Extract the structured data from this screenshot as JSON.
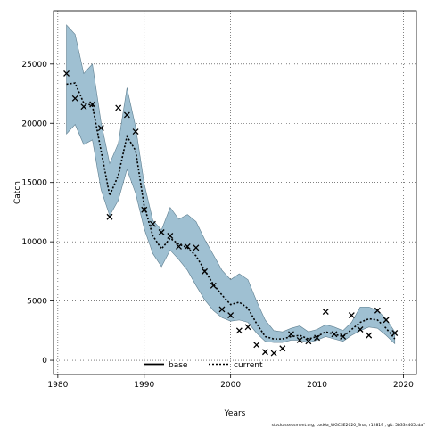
{
  "chart_data": {
    "type": "line",
    "xlabel": "Years",
    "ylabel": "Catch",
    "xlim": [
      1979.5,
      2021.5
    ],
    "ylim": [
      -1200,
      29500
    ],
    "x_ticks": [
      1980,
      1990,
      2000,
      2010,
      2020
    ],
    "y_ticks": [
      0,
      5000,
      10000,
      15000,
      20000,
      25000
    ],
    "grid": true,
    "legend_position": "bottom-center",
    "legend": {
      "base": "base",
      "current": "current"
    },
    "colors": {
      "band": "#9fc0d2",
      "band_edge": "#5f7f90",
      "line": "#000000"
    },
    "years": [
      1981,
      1982,
      1983,
      1984,
      1985,
      1986,
      1987,
      1988,
      1989,
      1990,
      1991,
      1992,
      1993,
      1994,
      1995,
      1996,
      1997,
      1998,
      1999,
      2000,
      2001,
      2002,
      2003,
      2004,
      2005,
      2006,
      2007,
      2008,
      2009,
      2010,
      2011,
      2012,
      2013,
      2014,
      2015,
      2016,
      2017,
      2018,
      2019
    ],
    "series": [
      {
        "name": "current",
        "style": "dotted",
        "values": [
          23300,
          23400,
          21700,
          21500,
          17700,
          13900,
          15600,
          18900,
          17700,
          13000,
          10500,
          9400,
          10300,
          9800,
          9500,
          8800,
          7600,
          6400,
          5500,
          4700,
          4900,
          4400,
          3100,
          2000,
          1800,
          1800,
          2000,
          2100,
          1800,
          2000,
          2400,
          2200,
          2000,
          2600,
          3200,
          3500,
          3400,
          2700,
          1800
        ],
        "lower": [
          19100,
          19900,
          18200,
          18600,
          14400,
          12200,
          13500,
          16100,
          14100,
          11100,
          9000,
          7900,
          9300,
          8500,
          7600,
          6300,
          5100,
          4200,
          3600,
          3300,
          3400,
          3200,
          2300,
          1600,
          1500,
          1500,
          1700,
          1700,
          1500,
          1700,
          2000,
          1800,
          1600,
          2100,
          2500,
          2800,
          2700,
          2100,
          1400
        ],
        "upper": [
          28300,
          27500,
          24200,
          25000,
          20100,
          16600,
          18300,
          23000,
          19700,
          14900,
          11800,
          11000,
          12900,
          11900,
          12300,
          11700,
          10200,
          8900,
          7600,
          6800,
          7300,
          6800,
          5000,
          3400,
          2500,
          2400,
          2700,
          2900,
          2400,
          2600,
          3000,
          2800,
          2500,
          3200,
          4500,
          4500,
          4200,
          3500,
          2400
        ]
      }
    ],
    "observed": {
      "marker": "x",
      "values": [
        24200,
        22100,
        21400,
        21600,
        19600,
        12100,
        21300,
        20700,
        19300,
        12700,
        11500,
        10800,
        10500,
        9600,
        9600,
        9500,
        7500,
        6300,
        4300,
        3800,
        2500,
        2800,
        1300,
        700,
        600,
        1000,
        2200,
        1700,
        1600,
        1900,
        4100,
        2200,
        2000,
        3800,
        2600,
        2100,
        4200,
        3400,
        2300
      ]
    },
    "footer": "stockassessment.org, cod6a_WGCSE2020_final, r12819 , git: 5b334405cda7"
  }
}
